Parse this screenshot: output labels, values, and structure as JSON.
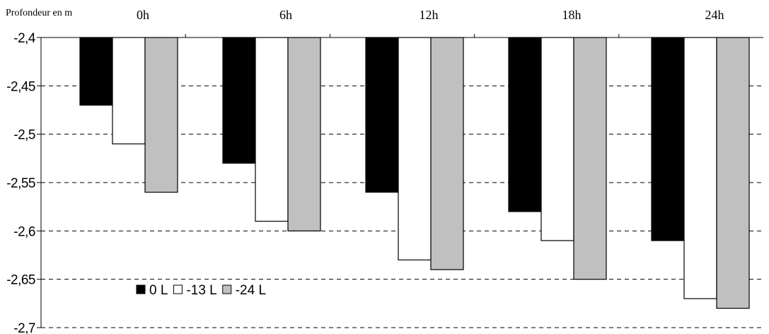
{
  "chart_data": {
    "type": "bar",
    "title": "",
    "ylabel": "Profondeur en m",
    "xlabel": "",
    "x_axis_position": "top",
    "categories": [
      "0h",
      "6h",
      "12h",
      "18h",
      "24h"
    ],
    "series": [
      {
        "name": "0 L",
        "color": "#000000",
        "values": [
          -2.47,
          -2.53,
          -2.56,
          -2.58,
          -2.61
        ]
      },
      {
        "name": "-13 L",
        "color": "#ffffff",
        "values": [
          -2.51,
          -2.59,
          -2.63,
          -2.61,
          -2.67
        ]
      },
      {
        "name": "-24 L",
        "color": "#c0c0c0",
        "values": [
          -2.56,
          -2.6,
          -2.64,
          -2.65,
          -2.68
        ]
      }
    ],
    "ylim": [
      -2.7,
      -2.4
    ],
    "yticks": [
      "-2,4",
      "-2,45",
      "-2,5",
      "-2,55",
      "-2,6",
      "-2,65",
      "-2,7"
    ],
    "grid": "horizontal-dashed",
    "legend_position": "bottom-left"
  }
}
